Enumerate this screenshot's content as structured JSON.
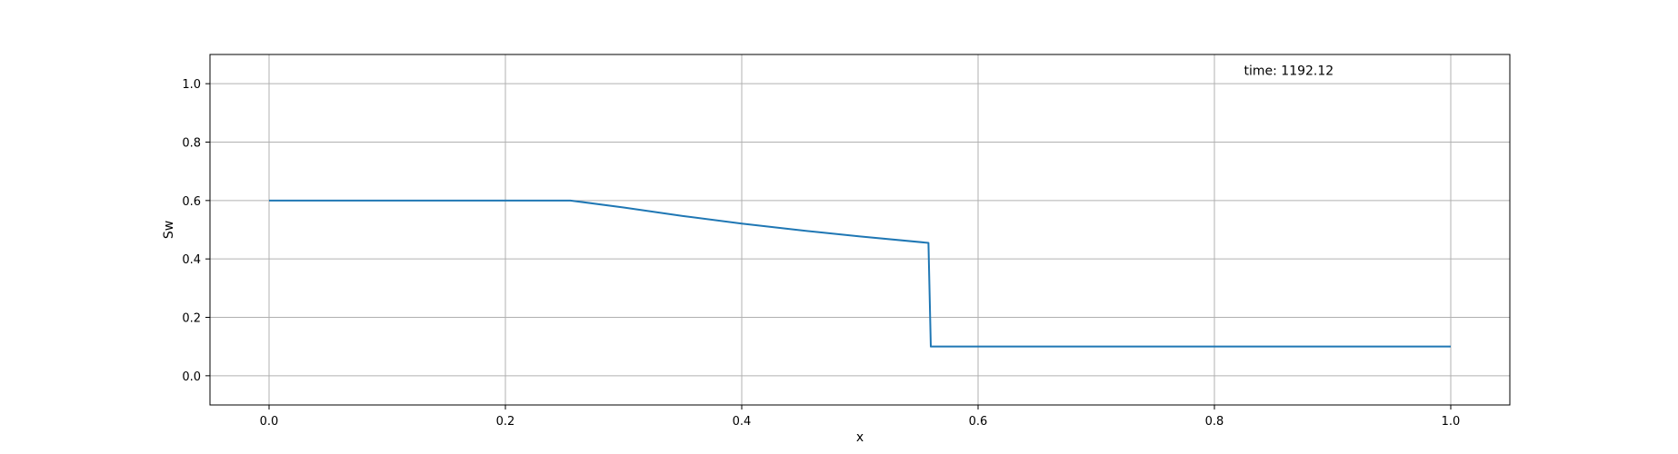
{
  "chart_data": {
    "type": "line",
    "title": "",
    "xlabel": "x",
    "ylabel": "Sw",
    "xlim": [
      -0.05,
      1.05
    ],
    "ylim": [
      -0.1,
      1.1
    ],
    "x_ticks": [
      0.0,
      0.2,
      0.4,
      0.6,
      0.8,
      1.0
    ],
    "x_tick_labels": [
      "0.0",
      "0.2",
      "0.4",
      "0.6",
      "0.8",
      "1.0"
    ],
    "y_ticks": [
      0.0,
      0.2,
      0.4,
      0.6,
      0.8,
      1.0
    ],
    "y_tick_labels": [
      "0.0",
      "0.2",
      "0.4",
      "0.6",
      "0.8",
      "1.0"
    ],
    "grid": true,
    "annotation": {
      "text": "time: 1192.12",
      "x": 0.825,
      "y": 1.045
    },
    "series": [
      {
        "color": "#1f77b4",
        "points": [
          [
            0.0,
            0.6
          ],
          [
            0.255,
            0.6
          ],
          [
            0.3,
            0.576
          ],
          [
            0.35,
            0.547
          ],
          [
            0.4,
            0.521
          ],
          [
            0.45,
            0.498
          ],
          [
            0.5,
            0.477
          ],
          [
            0.558,
            0.455
          ],
          [
            0.56,
            0.1
          ],
          [
            1.0,
            0.1
          ]
        ]
      }
    ]
  }
}
